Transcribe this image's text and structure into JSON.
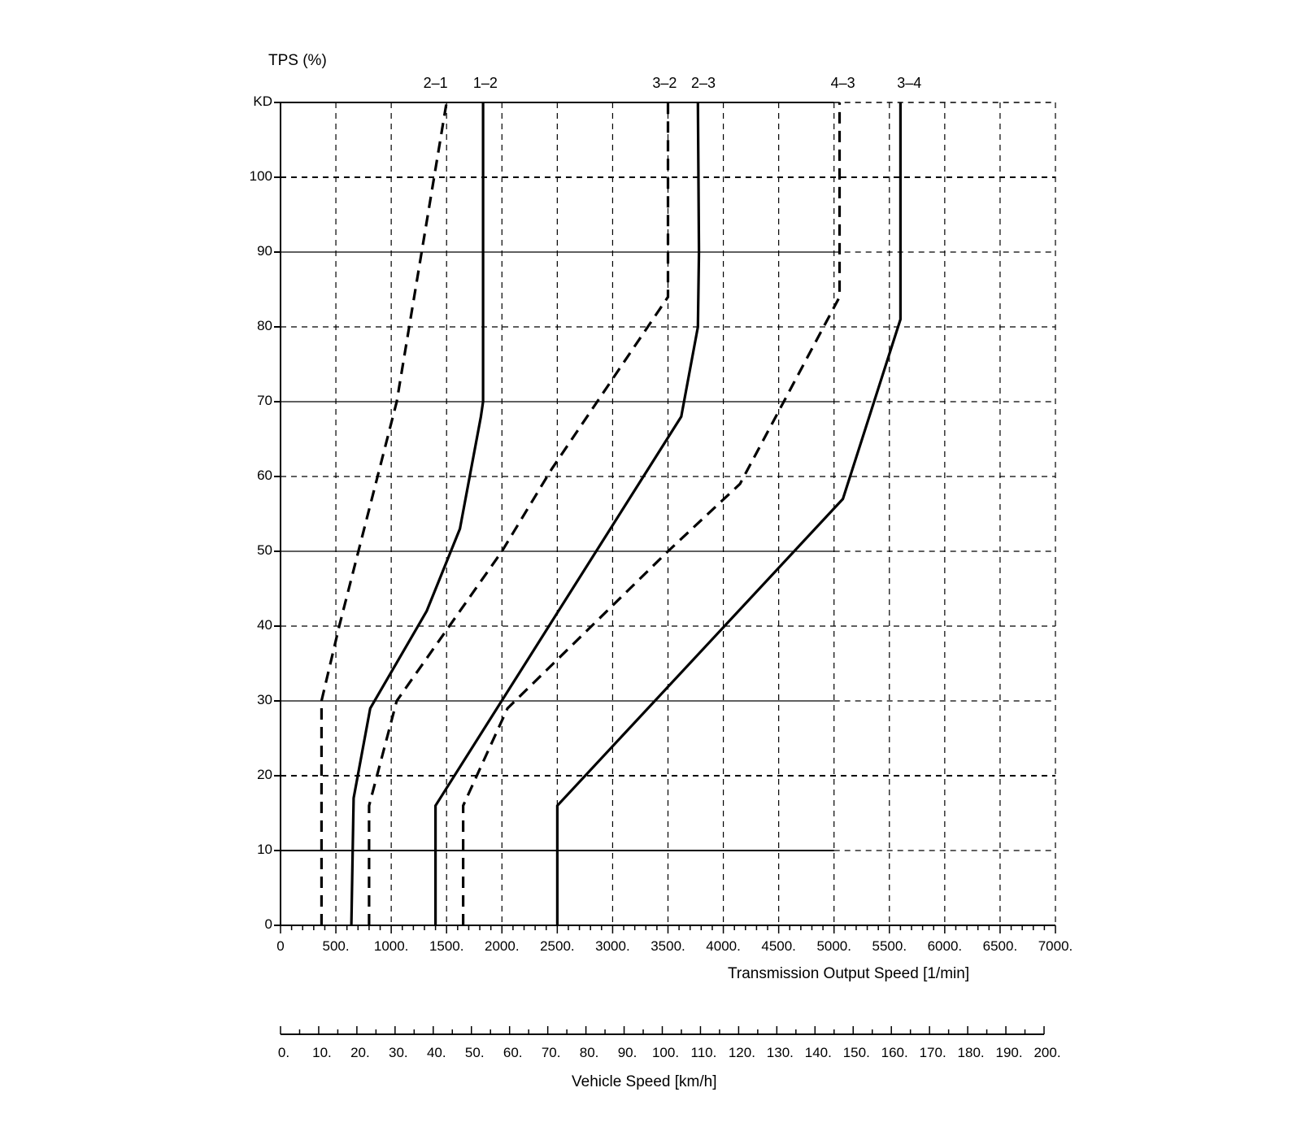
{
  "chart_data": {
    "type": "line",
    "title": "",
    "ylabel": "TPS (%)",
    "xlabel": "Transmission Output Speed [1/min]",
    "secondary_xlabel": "Vehicle Speed [km/h]",
    "xlim": [
      0,
      7000
    ],
    "ylim": [
      0,
      110
    ],
    "secondary_xlim": [
      0,
      200
    ],
    "grid": true,
    "y_ticks": [
      0,
      10,
      20,
      30,
      40,
      50,
      60,
      70,
      80,
      90,
      100,
      110
    ],
    "y_tick_labels": [
      "0",
      "10",
      "20",
      "30",
      "40",
      "50",
      "60",
      "70",
      "80",
      "90",
      "100",
      "KD"
    ],
    "x_ticks": [
      0,
      500,
      1000,
      1500,
      2000,
      2500,
      3000,
      3500,
      4000,
      4500,
      5000,
      5500,
      6000,
      6500,
      7000
    ],
    "x_tick_labels": [
      "0",
      "500.",
      "1000.",
      "1500.",
      "2000.",
      "2500.",
      "3000.",
      "3500.",
      "4000.",
      "4500.",
      "5000.",
      "5500.",
      "6000.",
      "6500.",
      "7000."
    ],
    "secondary_x_ticks": [
      0,
      10,
      20,
      30,
      40,
      50,
      60,
      70,
      80,
      90,
      100,
      110,
      120,
      130,
      140,
      150,
      160,
      170,
      180,
      190,
      200
    ],
    "secondary_x_tick_labels": [
      "0.",
      "10.",
      "20.",
      "30.",
      "40.",
      "50.",
      "60.",
      "70.",
      "80.",
      "90.",
      "100.",
      "110.",
      "120.",
      "130.",
      "140.",
      "150.",
      "160.",
      "170.",
      "180.",
      "190.",
      "200."
    ],
    "series": [
      {
        "name": "2–1",
        "style": "dashed",
        "x": [
          370,
          370,
          530,
          1050,
          1500
        ],
        "y": [
          0,
          30,
          40,
          70,
          110
        ],
        "label_x": 1400
      },
      {
        "name": "1–2",
        "style": "solid",
        "x": [
          640,
          660,
          810,
          1320,
          1620,
          1810,
          1830,
          1830
        ],
        "y": [
          0,
          17,
          29,
          42,
          53,
          68,
          70,
          110
        ],
        "label_x": 1850
      },
      {
        "name": "3–2",
        "style": "dashed",
        "x": [
          800,
          800,
          1050,
          2000,
          2450,
          3500,
          3500
        ],
        "y": [
          0,
          16,
          30,
          50,
          61,
          84,
          110
        ],
        "label_x": 3470
      },
      {
        "name": "2–3",
        "style": "solid",
        "x": [
          1400,
          1400,
          3620,
          3770,
          3780,
          3770
        ],
        "y": [
          0,
          16,
          68,
          80,
          90,
          110
        ],
        "label_x": 3820
      },
      {
        "name": "4–3",
        "style": "dashed",
        "x": [
          1650,
          1650,
          2050,
          3500,
          4150,
          5050,
          5050
        ],
        "y": [
          0,
          16,
          29,
          50,
          59,
          84,
          110
        ],
        "label_x": 5080
      },
      {
        "name": "3–4",
        "style": "solid",
        "x": [
          2500,
          2500,
          5080,
          5600,
          5600
        ],
        "y": [
          0,
          16,
          57,
          81,
          110
        ],
        "label_x": 5680
      }
    ]
  }
}
